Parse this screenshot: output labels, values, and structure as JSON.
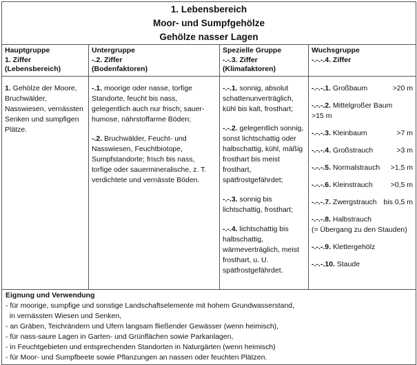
{
  "title": [
    "1. Lebensbereich",
    "Moor- und Sumpfgehölze",
    "Gehölze nasser Lagen"
  ],
  "headers": [
    [
      "Hauptgruppe",
      "1. Ziffer",
      "(Lebensbereich)"
    ],
    [
      "Untergruppe",
      "-.2. Ziffer",
      "(Bodenfaktoren)"
    ],
    [
      "Spezielle Gruppe",
      "-.-.3. Ziffer",
      "(Klimafaktoren)"
    ],
    [
      "Wuchsgruppe",
      "-.-.-.4. Ziffer"
    ]
  ],
  "hauptgruppe": [
    {
      "code": "1.",
      "text": " Gehölze der Moore, Bruchwälder, Nasswiesen, vernässten Senken und sumpfigen Plätze."
    }
  ],
  "untergruppe": [
    {
      "code": "-.1.",
      "text": " moorige oder nasse, torfige Standorte, feucht bis nass, gelegentlich auch nur frisch; sauer-humose, nährstoffarme Böden;"
    },
    {
      "code": "-.2.",
      "text": " Bruchwälder, Feucht- und Nasswiesen, Feuchtbiotope, Sumpfstandorte; frisch bis nass, torfige oder sauermineralische, z. T. verdichtete und vernässte Böden."
    }
  ],
  "spezielle_gruppe": [
    {
      "code": "-.-.1.",
      "text": " sonnig, absolut schattenunverträglich, kühl bis kalt, frosthart;"
    },
    {
      "code": "-.-.2.",
      "text": " gelegentlich sonnig, sonst lichtschattig oder halbschattig, kühl, mäßig frosthart bis meist frosthart, spätfrostgefährdet;"
    },
    {
      "code": "-.-.3.",
      "text": " sonnig bis lichtschattig, frosthart;"
    },
    {
      "code": "-.-.4.",
      "text": " lichtschattig bis halbschattig, wärmeverträglich, meist frosthart, u. U. spätfrostgefährdet."
    }
  ],
  "wuchsgruppe": [
    {
      "code": "-.-.-.1.",
      "label": " Großbaum",
      "size": ">20 m"
    },
    {
      "code": "-.-.-.2.",
      "label": " Mittelgroßer Baum",
      "size": ">15 m"
    },
    {
      "code": "-.-.-.3.",
      "label": " Kleinbaum",
      "size": ">7 m"
    },
    {
      "code": "-.-.-.4.",
      "label": " Großstrauch",
      "size": ">3 m"
    },
    {
      "code": "-.-.-.5.",
      "label": " Normalstrauch",
      "size": ">1,5 m"
    },
    {
      "code": "-.-.-.6.",
      "label": " Kleinstrauch",
      "size": ">0,5 m"
    },
    {
      "code": "-.-.-.7.",
      "label": " Zwergstrauch",
      "size": "bis 0,5 m"
    },
    {
      "code": "-.-.-.8.",
      "label": " Halbstrauch",
      "note": "(= Übergang zu den Stauden)"
    },
    {
      "code": "-.-.-.9.",
      "label": " Klettergehölz"
    },
    {
      "code": "-.-.-.10.",
      "label": " Staude"
    }
  ],
  "eignung": {
    "heading": "Eignung und Verwendung",
    "lines": [
      "- für moorige, sumpfige und sonstige Landschaftselemente mit hohem Grundwasserstand,",
      "  in vernässten Wiesen und Senken,",
      "- an Gräben, Teichrändern und Ufern langsam fließender Gewässer (wenn heimisch),",
      "- für nass-saure Lagen in Garten- und Grünflächen sowie Parkanlagen,",
      "- in Feuchtgebieten und entsprechenden Standorten in Naturgärten (wenn heimisch)",
      "- für Moor- und Sumpfbeete sowie Pflanzungen an nassen oder feuchten Plätzen."
    ]
  }
}
